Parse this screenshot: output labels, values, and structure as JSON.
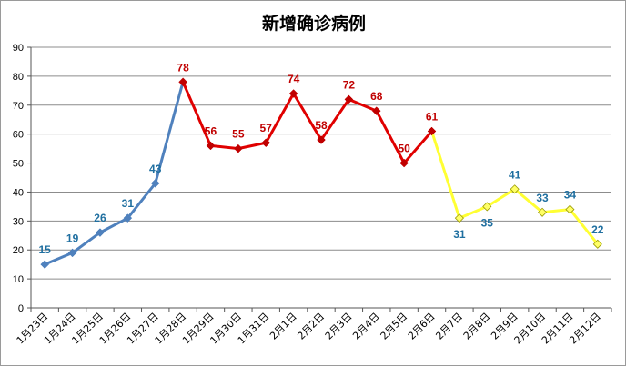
{
  "chart_data": {
    "type": "line",
    "title": "新增确诊病例",
    "ylim": [
      0,
      90
    ],
    "yticks": [
      0,
      10,
      20,
      30,
      40,
      50,
      60,
      70,
      80,
      90
    ],
    "grid": true,
    "categories": [
      "1月23日",
      "1月24日",
      "1月25日",
      "1月26日",
      "1月27日",
      "1月28日",
      "1月29日",
      "1月30日",
      "1月31日",
      "2月1日",
      "2月2日",
      "2月3日",
      "2月4日",
      "2月5日",
      "2月6日",
      "2月7日",
      "2月8日",
      "2月9日",
      "2月10日",
      "2月11日",
      "2月12日"
    ],
    "values": [
      15,
      19,
      26,
      31,
      43,
      78,
      56,
      55,
      57,
      74,
      58,
      72,
      68,
      50,
      61,
      31,
      35,
      41,
      33,
      34,
      22
    ],
    "segments": [
      {
        "from": 0,
        "to": 5,
        "line_color": "#4f81bd",
        "marker": "diamond",
        "marker_color": "#4f81bd",
        "label_color": "#1f6fa0"
      },
      {
        "from": 5,
        "to": 14,
        "line_color": "#e00000",
        "marker": "diamond",
        "marker_color": "#c00000",
        "label_color": "#c00000"
      },
      {
        "from": 14,
        "to": 20,
        "line_color": "#ffff33",
        "marker": "diamond-open",
        "marker_color": "#e0e000",
        "label_color": "#1f6fa0"
      }
    ]
  }
}
